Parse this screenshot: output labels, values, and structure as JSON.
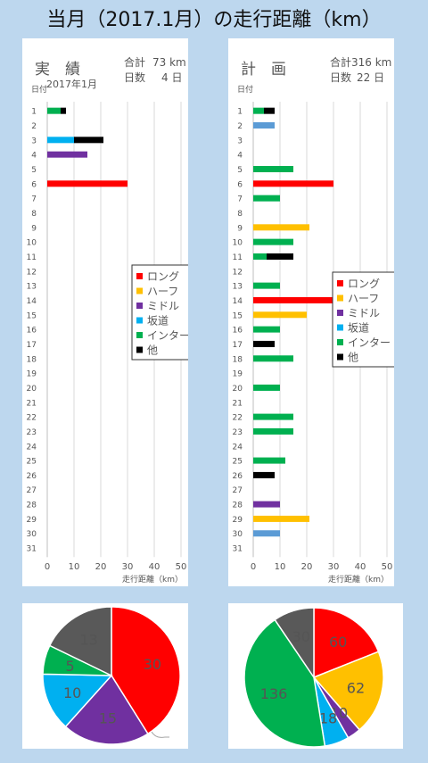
{
  "title": "当月（2017.1月）の走行距離（km）",
  "legend": {
    "items": [
      {
        "name": "ロング",
        "color": "#ff0000"
      },
      {
        "name": "ハーフ",
        "color": "#ffc000"
      },
      {
        "name": "ミドル",
        "color": "#7030a0"
      },
      {
        "name": "坂道",
        "color": "#00b0f0"
      },
      {
        "name": "インター",
        "color": "#00b050"
      },
      {
        "name": "他",
        "color": "#000000"
      }
    ]
  },
  "chart_data": [
    {
      "type": "bar",
      "orientation": "horizontal",
      "stacked": true,
      "title": "実　績",
      "subtitle": "2017年1月",
      "summary": {
        "total_label": "合計",
        "total_value": "73 km",
        "days_label": "日数",
        "days_value": "4 日"
      },
      "ylabel": "日付",
      "xlabel": "走行距離（km）",
      "xlim": [
        0,
        50
      ],
      "xticks": [
        0,
        10,
        20,
        30,
        40,
        50
      ],
      "categories": [
        "1",
        "2",
        "3",
        "4",
        "5",
        "6",
        "7",
        "8",
        "9",
        "10",
        "11",
        "12",
        "13",
        "14",
        "15",
        "16",
        "17",
        "18",
        "19",
        "20",
        "21",
        "22",
        "23",
        "24",
        "25",
        "26",
        "27",
        "28",
        "29",
        "30",
        "31"
      ],
      "series": [
        {
          "name": "ロング",
          "color": "#ff0000",
          "values": [
            0,
            0,
            0,
            0,
            0,
            30,
            0,
            0,
            0,
            0,
            0,
            0,
            0,
            0,
            0,
            0,
            0,
            0,
            0,
            0,
            0,
            0,
            0,
            0,
            0,
            0,
            0,
            0,
            0,
            0,
            0
          ]
        },
        {
          "name": "ハーフ",
          "color": "#ffc000",
          "values": [
            0,
            0,
            0,
            0,
            0,
            0,
            0,
            0,
            0,
            0,
            0,
            0,
            0,
            0,
            0,
            0,
            0,
            0,
            0,
            0,
            0,
            0,
            0,
            0,
            0,
            0,
            0,
            0,
            0,
            0,
            0
          ]
        },
        {
          "name": "ミドル",
          "color": "#7030a0",
          "values": [
            0,
            0,
            0,
            15,
            0,
            0,
            0,
            0,
            0,
            0,
            0,
            0,
            0,
            0,
            0,
            0,
            0,
            0,
            0,
            0,
            0,
            0,
            0,
            0,
            0,
            0,
            0,
            0,
            0,
            0,
            0
          ]
        },
        {
          "name": "坂道",
          "color": "#00b0f0",
          "values": [
            0,
            0,
            10,
            0,
            0,
            0,
            0,
            0,
            0,
            0,
            0,
            0,
            0,
            0,
            0,
            0,
            0,
            0,
            0,
            0,
            0,
            0,
            0,
            0,
            0,
            0,
            0,
            0,
            0,
            0,
            0
          ]
        },
        {
          "name": "インター",
          "color": "#00b050",
          "values": [
            5,
            0,
            0,
            0,
            0,
            0,
            0,
            0,
            0,
            0,
            0,
            0,
            0,
            0,
            0,
            0,
            0,
            0,
            0,
            0,
            0,
            0,
            0,
            0,
            0,
            0,
            0,
            0,
            0,
            0,
            0
          ]
        },
        {
          "name": "他",
          "color": "#000000",
          "values": [
            2,
            0,
            11,
            0,
            0,
            0,
            0,
            0,
            0,
            0,
            0,
            0,
            0,
            0,
            0,
            0,
            0,
            0,
            0,
            0,
            0,
            0,
            0,
            0,
            0,
            0,
            0,
            0,
            0,
            0,
            0
          ]
        }
      ]
    },
    {
      "type": "bar",
      "orientation": "horizontal",
      "stacked": true,
      "title": "計　画",
      "summary": {
        "total_label": "合計",
        "total_value": "316 km",
        "days_label": "日数",
        "days_value": "22 日"
      },
      "ylabel": "日付",
      "xlabel": "走行距離（km）",
      "xlim": [
        0,
        50
      ],
      "xticks": [
        0,
        10,
        20,
        30,
        40,
        50
      ],
      "categories": [
        "1",
        "2",
        "3",
        "4",
        "5",
        "6",
        "7",
        "8",
        "9",
        "10",
        "11",
        "12",
        "13",
        "14",
        "15",
        "16",
        "17",
        "18",
        "19",
        "20",
        "21",
        "22",
        "23",
        "24",
        "25",
        "26",
        "27",
        "28",
        "29",
        "30",
        "31"
      ],
      "series": [
        {
          "name": "ロング",
          "color": "#ff0000",
          "values": [
            0,
            0,
            0,
            0,
            0,
            30,
            0,
            0,
            0,
            0,
            0,
            0,
            0,
            30,
            0,
            0,
            0,
            0,
            0,
            0,
            0,
            0,
            0,
            0,
            0,
            0,
            0,
            0,
            0,
            0,
            0
          ]
        },
        {
          "name": "ハーフ",
          "color": "#ffc000",
          "values": [
            0,
            0,
            0,
            0,
            0,
            0,
            0,
            0,
            21,
            0,
            0,
            0,
            0,
            0,
            20,
            0,
            0,
            0,
            0,
            0,
            0,
            0,
            0,
            0,
            0,
            0,
            0,
            0,
            21,
            0,
            0
          ]
        },
        {
          "name": "ミドル",
          "color": "#7030a0",
          "values": [
            0,
            0,
            0,
            0,
            0,
            0,
            0,
            0,
            0,
            0,
            0,
            0,
            0,
            0,
            0,
            0,
            0,
            0,
            0,
            0,
            0,
            0,
            0,
            0,
            0,
            0,
            0,
            10,
            0,
            0,
            0
          ]
        },
        {
          "name": "坂道",
          "color": "#5b9bd5",
          "values": [
            0,
            8,
            0,
            0,
            0,
            0,
            0,
            0,
            0,
            0,
            0,
            0,
            0,
            0,
            0,
            0,
            0,
            0,
            0,
            0,
            0,
            0,
            0,
            0,
            0,
            0,
            0,
            0,
            0,
            10,
            0
          ]
        },
        {
          "name": "インター",
          "color": "#00b050",
          "values": [
            4,
            0,
            0,
            0,
            15,
            0,
            10,
            0,
            0,
            15,
            5,
            0,
            10,
            0,
            0,
            10,
            0,
            15,
            0,
            10,
            0,
            15,
            15,
            0,
            12,
            0,
            0,
            0,
            0,
            0,
            0
          ]
        },
        {
          "name": "他",
          "color": "#000000",
          "values": [
            4,
            0,
            0,
            0,
            0,
            0,
            0,
            0,
            0,
            0,
            10,
            0,
            0,
            0,
            0,
            0,
            8,
            0,
            0,
            0,
            0,
            0,
            0,
            0,
            0,
            8,
            0,
            0,
            0,
            0,
            0
          ]
        }
      ]
    },
    {
      "type": "pie",
      "labels": [
        "ロング",
        "ミドル",
        "坂道",
        "インター",
        "他"
      ],
      "values": [
        30,
        15,
        10,
        5,
        13
      ],
      "colors": [
        "#ff0000",
        "#7030a0",
        "#00b0f0",
        "#00b050",
        "#595959"
      ]
    },
    {
      "type": "pie",
      "labels": [
        "ロング",
        "ハーフ",
        "ミドル",
        "坂道",
        "インター",
        "他"
      ],
      "values": [
        60,
        62,
        10,
        18,
        136,
        30
      ],
      "colors": [
        "#ff0000",
        "#ffc000",
        "#7030a0",
        "#00b0f0",
        "#00b050",
        "#595959"
      ]
    }
  ]
}
